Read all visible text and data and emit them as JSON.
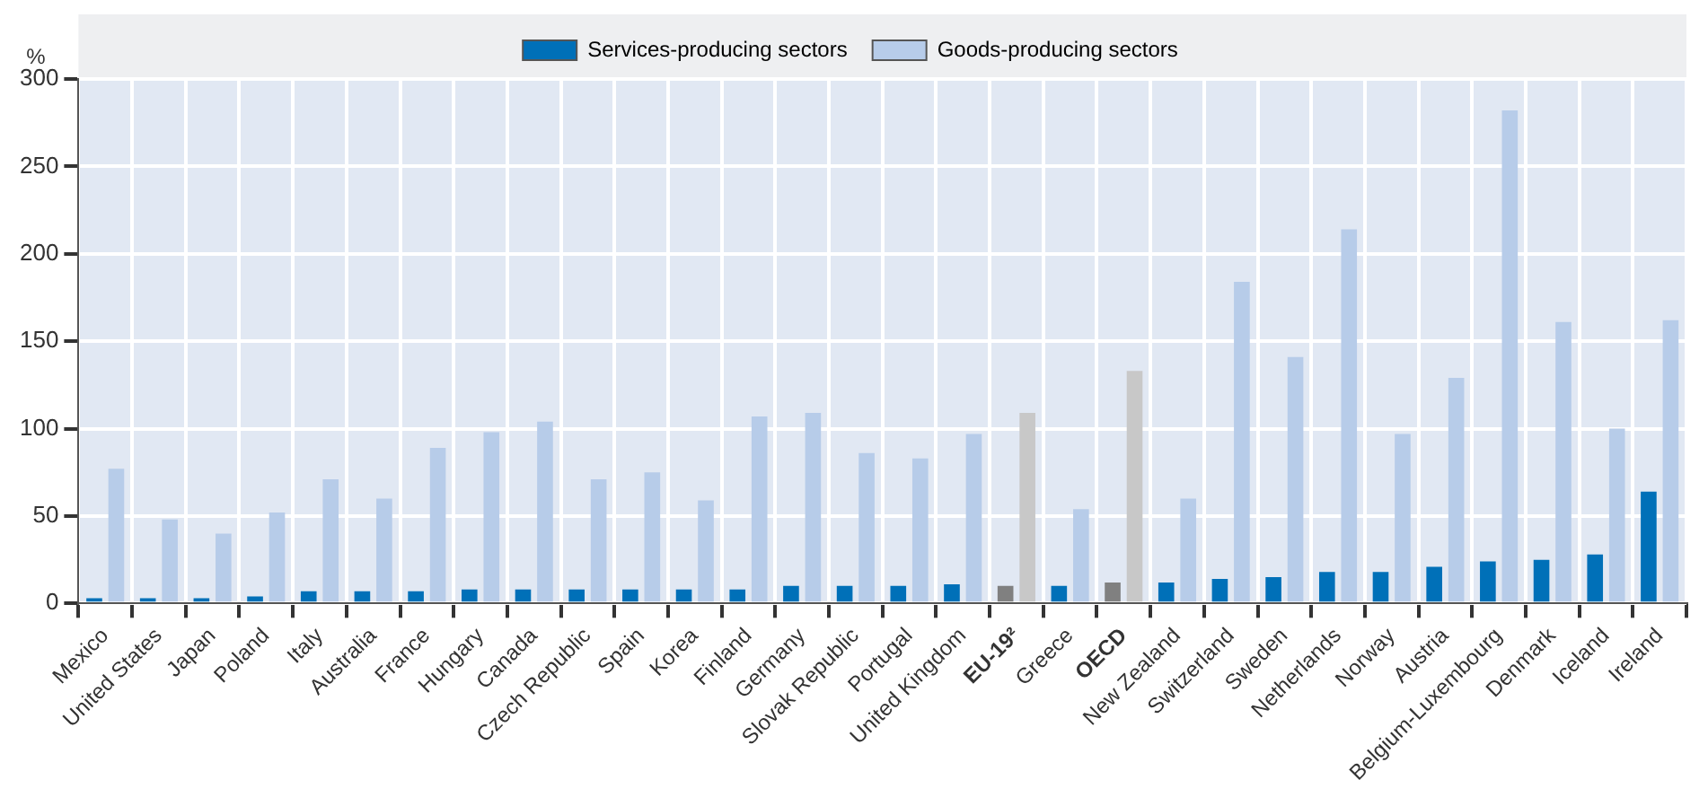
{
  "chart_data": {
    "type": "bar",
    "ylabel": "%",
    "categories": [
      "Mexico",
      "United States",
      "Japan",
      "Poland",
      "Italy",
      "Australia",
      "France",
      "Hungary",
      "Canada",
      "Czech Republic",
      "Spain",
      "Korea",
      "Finland",
      "Germany",
      "Slovak Republic",
      "Portugal",
      "United Kingdom",
      "EU-19²",
      "Greece",
      "OECD",
      "New Zealand",
      "Switzerland",
      "Sweden",
      "Netherlands",
      "Norway",
      "Austria",
      "Belgium-Luxembourg",
      "Denmark",
      "Iceland",
      "Ireland"
    ],
    "series": [
      {
        "name": "Services-producing sectors",
        "color": "#0070b8",
        "colors": [
          "#0070b8",
          "#0070b8",
          "#0070b8",
          "#0070b8",
          "#0070b8",
          "#0070b8",
          "#0070b8",
          "#0070b8",
          "#0070b8",
          "#0070b8",
          "#0070b8",
          "#0070b8",
          "#0070b8",
          "#0070b8",
          "#0070b8",
          "#0070b8",
          "#0070b8",
          "#808080",
          "#0070b8",
          "#808080",
          "#0070b8",
          "#0070b8",
          "#0070b8",
          "#0070b8",
          "#0070b8",
          "#0070b8",
          "#0070b8",
          "#0070b8",
          "#0070b8",
          "#0070b8"
        ],
        "values": [
          3,
          3,
          3,
          4,
          7,
          7,
          7,
          8,
          8,
          8,
          8,
          8,
          8,
          10,
          10,
          10,
          11,
          10,
          10,
          12,
          12,
          14,
          15,
          18,
          18,
          21,
          24,
          25,
          28,
          64
        ]
      },
      {
        "name": "Goods-producing sectors",
        "color": "#b7cce9",
        "colors": [
          "#b7cce9",
          "#b7cce9",
          "#b7cce9",
          "#b7cce9",
          "#b7cce9",
          "#b7cce9",
          "#b7cce9",
          "#b7cce9",
          "#b7cce9",
          "#b7cce9",
          "#b7cce9",
          "#b7cce9",
          "#b7cce9",
          "#b7cce9",
          "#b7cce9",
          "#b7cce9",
          "#b7cce9",
          "#c8c8c8",
          "#b7cce9",
          "#c8c8c8",
          "#b7cce9",
          "#b7cce9",
          "#b7cce9",
          "#b7cce9",
          "#b7cce9",
          "#b7cce9",
          "#b7cce9",
          "#b7cce9",
          "#b7cce9",
          "#b7cce9"
        ],
        "values": [
          77,
          48,
          40,
          52,
          71,
          60,
          89,
          98,
          104,
          71,
          75,
          59,
          107,
          109,
          86,
          83,
          97,
          109,
          54,
          133,
          60,
          184,
          141,
          214,
          97,
          129,
          282,
          161,
          100,
          162
        ]
      }
    ],
    "ylim": [
      0,
      300
    ],
    "yticks": [
      0,
      50,
      100,
      150,
      200,
      250,
      300
    ],
    "grid": true,
    "legend": "top"
  }
}
